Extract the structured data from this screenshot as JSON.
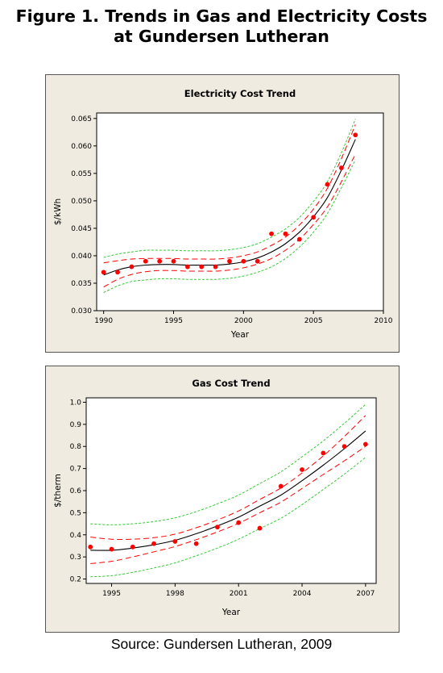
{
  "figure_title_line1": "Figure 1. Trends in Gas and Electricity Costs",
  "figure_title_line2": "at Gundersen Lutheran",
  "source": "Source: Gundersen Lutheran, 2009",
  "colors": {
    "fit": "#000000",
    "ci": "#ff0000",
    "pi": "#33cc33",
    "points": "#ff0000",
    "panel_bg": "#efebe0",
    "plot_bg": "#ffffff"
  },
  "chart_data": [
    {
      "type": "scatter",
      "title": "Electricity Cost Trend",
      "xlabel": "Year",
      "ylabel": "$/kWh",
      "xlim": [
        1989.5,
        2010
      ],
      "ylim": [
        0.03,
        0.066
      ],
      "xticks": [
        1990,
        1995,
        2000,
        2005,
        2010
      ],
      "xtick_labels": [
        "1990",
        "1995",
        "2000",
        "2005",
        "2010"
      ],
      "yticks": [
        0.03,
        0.035,
        0.04,
        0.045,
        0.05,
        0.055,
        0.06,
        0.065
      ],
      "ytick_labels": [
        "0.030",
        "0.035",
        "0.040",
        "0.045",
        "0.050",
        "0.055",
        "0.060",
        "0.065"
      ],
      "grid": false,
      "points": [
        {
          "x": 1990,
          "y": 0.037
        },
        {
          "x": 1991,
          "y": 0.037
        },
        {
          "x": 1992,
          "y": 0.038
        },
        {
          "x": 1993,
          "y": 0.039
        },
        {
          "x": 1994,
          "y": 0.039
        },
        {
          "x": 1995,
          "y": 0.039
        },
        {
          "x": 1996,
          "y": 0.038
        },
        {
          "x": 1997,
          "y": 0.038
        },
        {
          "x": 1998,
          "y": 0.038
        },
        {
          "x": 1999,
          "y": 0.039
        },
        {
          "x": 2000,
          "y": 0.039
        },
        {
          "x": 2001,
          "y": 0.039
        },
        {
          "x": 2002,
          "y": 0.044
        },
        {
          "x": 2003,
          "y": 0.044
        },
        {
          "x": 2004,
          "y": 0.043
        },
        {
          "x": 2005,
          "y": 0.047
        },
        {
          "x": 2006,
          "y": 0.053
        },
        {
          "x": 2007,
          "y": 0.056
        },
        {
          "x": 2008,
          "y": 0.062
        }
      ],
      "fit": [
        {
          "x": 1990,
          "y": 0.0365
        },
        {
          "x": 1991,
          "y": 0.0374
        },
        {
          "x": 1992,
          "y": 0.038
        },
        {
          "x": 1993,
          "y": 0.0383
        },
        {
          "x": 1994,
          "y": 0.0384
        },
        {
          "x": 1995,
          "y": 0.0384
        },
        {
          "x": 1996,
          "y": 0.0383
        },
        {
          "x": 1997,
          "y": 0.0383
        },
        {
          "x": 1998,
          "y": 0.0383
        },
        {
          "x": 1999,
          "y": 0.0385
        },
        {
          "x": 2000,
          "y": 0.0389
        },
        {
          "x": 2001,
          "y": 0.0396
        },
        {
          "x": 2002,
          "y": 0.0407
        },
        {
          "x": 2003,
          "y": 0.0422
        },
        {
          "x": 2004,
          "y": 0.0443
        },
        {
          "x": 2005,
          "y": 0.0471
        },
        {
          "x": 2006,
          "y": 0.0506
        },
        {
          "x": 2007,
          "y": 0.0556
        },
        {
          "x": 2008,
          "y": 0.0612
        }
      ],
      "ci_half_width": [
        0.0022,
        0.0017,
        0.0014,
        0.0012,
        0.0011,
        0.0011,
        0.0011,
        0.0011,
        0.0011,
        0.0011,
        0.0011,
        0.0011,
        0.0012,
        0.0012,
        0.0013,
        0.0014,
        0.0017,
        0.0021,
        0.0027
      ],
      "pi_half_width": [
        0.0032,
        0.0029,
        0.0027,
        0.0027,
        0.0026,
        0.0026,
        0.0026,
        0.0026,
        0.0026,
        0.0026,
        0.0026,
        0.0026,
        0.0027,
        0.0027,
        0.0027,
        0.0028,
        0.0029,
        0.0032,
        0.0037
      ]
    },
    {
      "type": "scatter",
      "title": "Gas Cost Trend",
      "xlabel": "Year",
      "ylabel": "$/therm",
      "xlim": [
        1993.8,
        2007.5
      ],
      "ylim": [
        0.18,
        1.02
      ],
      "xticks": [
        1995,
        1998,
        2001,
        2004,
        2007
      ],
      "xtick_labels": [
        "1995",
        "1998",
        "2001",
        "2004",
        "2007"
      ],
      "yticks": [
        0.2,
        0.3,
        0.4,
        0.5,
        0.6,
        0.7,
        0.8,
        0.9,
        1.0
      ],
      "ytick_labels": [
        "0.2",
        "0.3",
        "0.4",
        "0.5",
        "0.6",
        "0.7",
        "0.8",
        "0.9",
        "1.0"
      ],
      "grid": false,
      "points": [
        {
          "x": 1994,
          "y": 0.345
        },
        {
          "x": 1995,
          "y": 0.335
        },
        {
          "x": 1996,
          "y": 0.345
        },
        {
          "x": 1997,
          "y": 0.36
        },
        {
          "x": 1998,
          "y": 0.37
        },
        {
          "x": 1999,
          "y": 0.36
        },
        {
          "x": 2000,
          "y": 0.435
        },
        {
          "x": 2001,
          "y": 0.455
        },
        {
          "x": 2002,
          "y": 0.43
        },
        {
          "x": 2003,
          "y": 0.62
        },
        {
          "x": 2004,
          "y": 0.695
        },
        {
          "x": 2005,
          "y": 0.77
        },
        {
          "x": 2006,
          "y": 0.8
        },
        {
          "x": 2007,
          "y": 0.81
        }
      ],
      "fit": [
        {
          "x": 1994,
          "y": 0.33
        },
        {
          "x": 1995,
          "y": 0.33
        },
        {
          "x": 1996,
          "y": 0.34
        },
        {
          "x": 1997,
          "y": 0.355
        },
        {
          "x": 1998,
          "y": 0.375
        },
        {
          "x": 1999,
          "y": 0.405
        },
        {
          "x": 2000,
          "y": 0.44
        },
        {
          "x": 2001,
          "y": 0.48
        },
        {
          "x": 2002,
          "y": 0.53
        },
        {
          "x": 2003,
          "y": 0.58
        },
        {
          "x": 2004,
          "y": 0.645
        },
        {
          "x": 2005,
          "y": 0.715
        },
        {
          "x": 2006,
          "y": 0.79
        },
        {
          "x": 2007,
          "y": 0.87
        }
      ],
      "ci_half_width": [
        0.06,
        0.05,
        0.04,
        0.032,
        0.028,
        0.027,
        0.027,
        0.028,
        0.03,
        0.032,
        0.035,
        0.042,
        0.055,
        0.07
      ],
      "pi_half_width": [
        0.12,
        0.115,
        0.11,
        0.105,
        0.102,
        0.1,
        0.1,
        0.1,
        0.102,
        0.105,
        0.108,
        0.11,
        0.115,
        0.12
      ]
    }
  ]
}
